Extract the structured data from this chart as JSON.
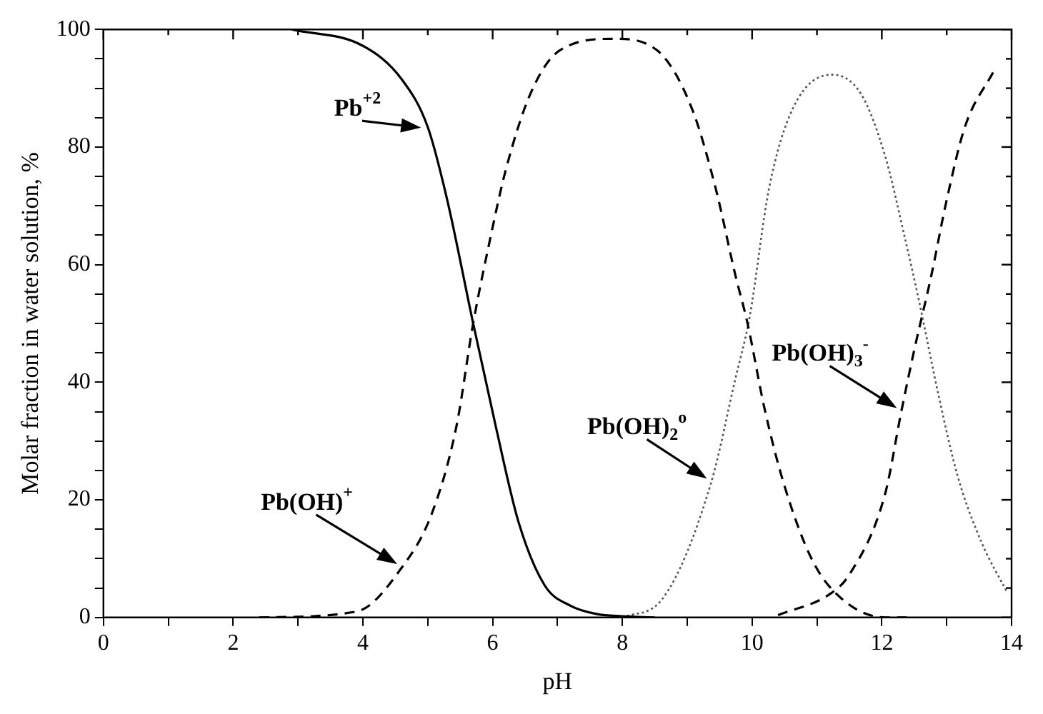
{
  "chart_data": {
    "type": "line",
    "xlabel": "pH",
    "ylabel": "Molar fraction in water solution, %",
    "xlim": [
      0,
      14
    ],
    "xticks": [
      0,
      {
        "value": 1,
        "label": null
      },
      2,
      {
        "value": 3,
        "label": null
      },
      4,
      {
        "value": 5,
        "label": null
      },
      6,
      {
        "value": 7,
        "label": null
      },
      8,
      {
        "value": 9,
        "label": null
      },
      10,
      {
        "value": 11,
        "label": null
      },
      12,
      {
        "value": 13,
        "label": null
      },
      14
    ],
    "ylim": [
      0,
      100
    ],
    "yticks": [
      0,
      {
        "value": 5,
        "label": null
      },
      {
        "value": 10,
        "label": null
      },
      {
        "value": 15,
        "label": null
      },
      20,
      {
        "value": 25,
        "label": null
      },
      {
        "value": 30,
        "label": null
      },
      {
        "value": 35,
        "label": null
      },
      40,
      {
        "value": 45,
        "label": null
      },
      {
        "value": 50,
        "label": null
      },
      {
        "value": 55,
        "label": null
      },
      60,
      {
        "value": 65,
        "label": null
      },
      {
        "value": 70,
        "label": null
      },
      {
        "value": 75,
        "label": null
      },
      80,
      {
        "value": 85,
        "label": null
      },
      {
        "value": 90,
        "label": null
      },
      {
        "value": 95,
        "label": null
      },
      100
    ],
    "grid": false,
    "legend": false,
    "marker": "none",
    "series": [
      {
        "color": "#000000",
        "line_style": "solid",
        "x": [
          2.9,
          4.0,
          4.6,
          5.0,
          5.3,
          5.7,
          6.05,
          6.4,
          6.8,
          7.2,
          7.6,
          8.0,
          8.5
        ],
        "values": [
          100,
          97.2,
          91.5,
          83.4,
          71,
          50,
          32.4,
          16.2,
          5.5,
          2,
          0.6,
          0.2,
          0
        ]
      },
      {
        "color": "#000000",
        "line_style": "dashed",
        "x": [
          2.4,
          3.9,
          4.6,
          5.06,
          5.44,
          5.7,
          5.97,
          6.2,
          6.58,
          7.03,
          7.87,
          8.54,
          9.07,
          9.44,
          9.74,
          9.93,
          10.19,
          10.49,
          10.93,
          11.38,
          12.05,
          12.5
        ],
        "values": [
          0,
          1,
          8.5,
          17.6,
          32.4,
          50,
          64.8,
          76,
          89,
          96.4,
          98.4,
          96.4,
          86.6,
          72.9,
          58.3,
          50,
          35.6,
          22.7,
          9.7,
          3.2,
          0,
          0
        ]
      },
      {
        "color": "#555555",
        "line_style": "dotted",
        "x": [
          8.0,
          8.62,
          9.37,
          9.74,
          9.96,
          10.26,
          10.63,
          11.23,
          11.68,
          12.05,
          12.35,
          12.57,
          12.87,
          13.17,
          13.54,
          13.92
        ],
        "values": [
          0,
          3.2,
          23,
          40.5,
          51,
          72.9,
          86.6,
          92.3,
          89,
          78.5,
          64.8,
          54,
          38,
          24,
          12.7,
          4.5
        ]
      },
      {
        "color": "#000000",
        "line_style": "dashed",
        "x": [
          10.4,
          11.2,
          11.5,
          12.05,
          12.3,
          12.5,
          12.76,
          13.0,
          13.28,
          13.73
        ],
        "values": [
          0.4,
          4,
          7.3,
          21,
          35,
          45.5,
          58,
          71,
          83.4,
          93
        ]
      }
    ],
    "annotations": [
      {
        "text": "Pb$^{+2}$",
        "x": 4.98,
        "y": 83
      },
      {
        "text": "Pb(OH)$^{+}$",
        "x": 4.6,
        "y": 8.5
      },
      {
        "text": "Pb(OH)$_{2}$$^{o}$",
        "x": 9.37,
        "y": 23
      },
      {
        "text": "Pb(OH)$_{3}$$^{-}$",
        "x": 12.3,
        "y": 35
      }
    ]
  }
}
